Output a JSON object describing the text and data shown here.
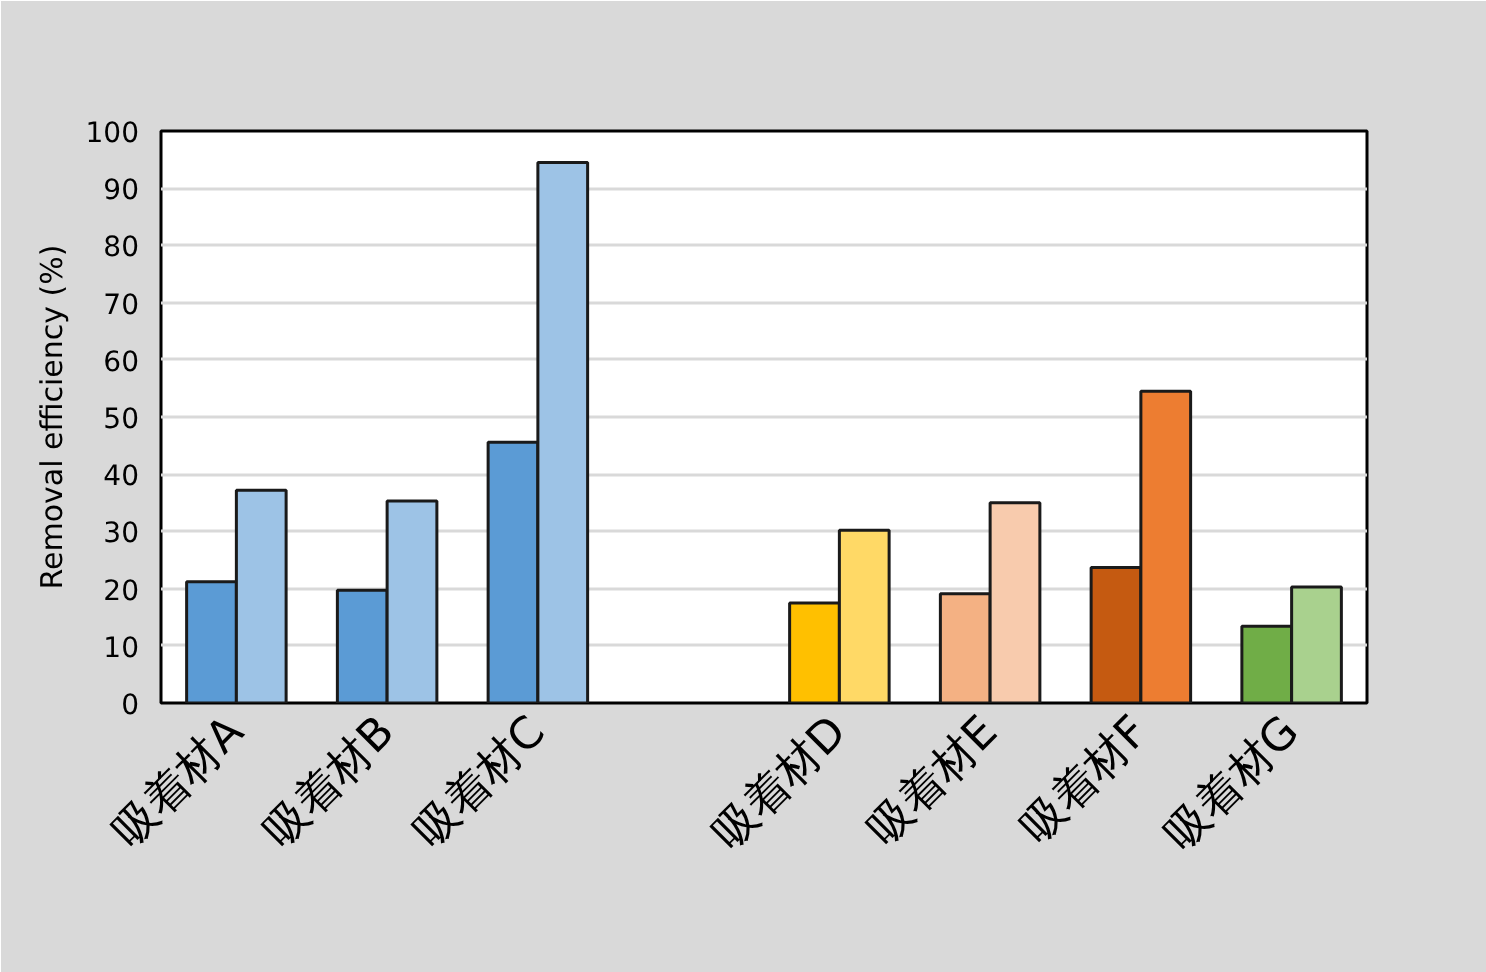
{
  "chart_data": {
    "type": "bar",
    "ylabel": "Removal efficiency (%)",
    "categories": [
      "吸着材A",
      "吸着材B",
      "吸着材C",
      null,
      "吸着材D",
      "吸着材E",
      "吸着材F",
      "吸着材G"
    ],
    "series": [
      {
        "colors": [
          "#5b9bd5",
          "#5b9bd5",
          "#5b9bd5",
          "#5b9bd5",
          "#ffc000",
          "#f4b183",
          "#c55a11",
          "#70ad47"
        ],
        "values": [
          21.2,
          19.7,
          45.6,
          null,
          17.5,
          19.1,
          23.7,
          13.4
        ]
      },
      {
        "colors": [
          "#9dc3e6",
          "#9dc3e6",
          "#9dc3e6",
          "#9dc3e6",
          "#ffd966",
          "#f8cbad",
          "#ed7d31",
          "#a9d18e"
        ],
        "values": [
          37.2,
          35.3,
          94.5,
          null,
          30.2,
          35.0,
          54.5,
          20.3
        ]
      }
    ],
    "ylim": [
      0,
      100
    ],
    "yticks": [
      0,
      10,
      20,
      30,
      40,
      50,
      60,
      70,
      80,
      90,
      100
    ],
    "grid": "y"
  }
}
